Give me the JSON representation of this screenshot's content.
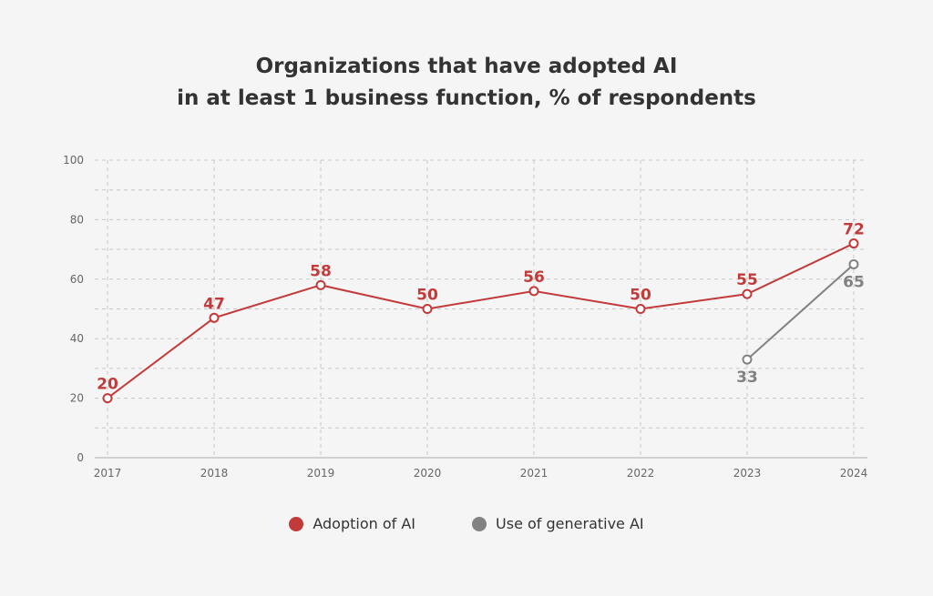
{
  "colors": {
    "adoption": "#c33a3a",
    "generative": "#828282",
    "grid": "#c8c8c8",
    "axis_text": "#666666"
  },
  "chart_data": {
    "type": "line",
    "title_lines": [
      "Organizations that have adopted AI",
      "in at least 1 business function, % of respondents"
    ],
    "xlabel": "",
    "ylabel": "",
    "categories": [
      "2017",
      "2018",
      "2019",
      "2020",
      "2021",
      "2022",
      "2023",
      "2024"
    ],
    "ylim": [
      0,
      100
    ],
    "yticks": [
      0,
      20,
      40,
      60,
      80,
      100
    ],
    "grid": true,
    "legend_position": "bottom",
    "series": [
      {
        "name": "Adoption of AI",
        "color": "#c33a3a",
        "values": [
          20,
          47,
          58,
          50,
          56,
          50,
          55,
          72
        ],
        "labels": [
          "20",
          "47",
          "58",
          "50",
          "56",
          "50",
          "55",
          "72"
        ]
      },
      {
        "name": "Use of generative AI",
        "color": "#828282",
        "values": [
          null,
          null,
          null,
          null,
          null,
          null,
          33,
          65
        ],
        "labels": [
          null,
          null,
          null,
          null,
          null,
          null,
          "33",
          "65"
        ]
      }
    ]
  }
}
